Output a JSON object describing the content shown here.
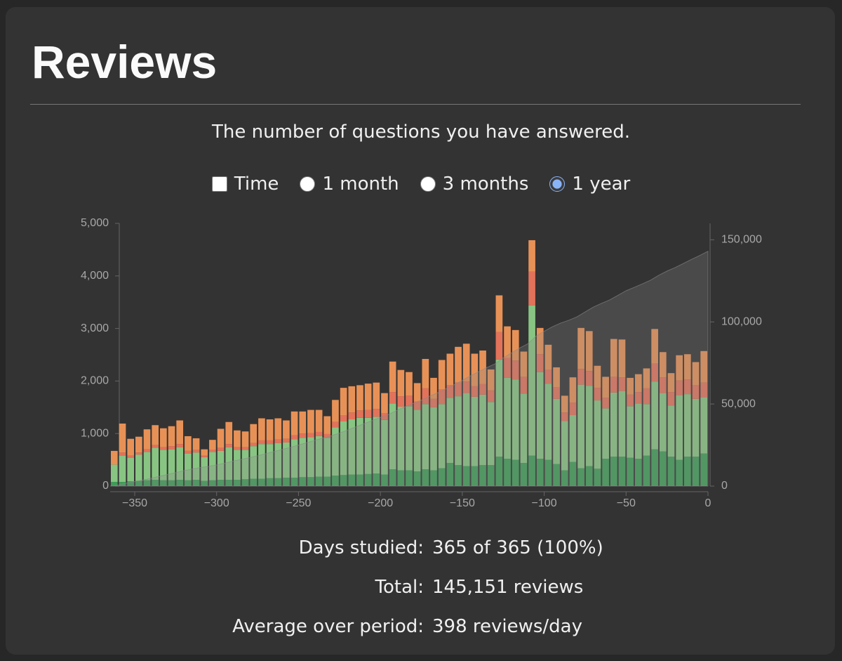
{
  "header": {
    "title": "Reviews",
    "subtitle": "The number of questions you have answered."
  },
  "controls": {
    "time": {
      "label": "Time",
      "checked": false
    },
    "ranges": [
      {
        "label": "1 month",
        "selected": false
      },
      {
        "label": "3 months",
        "selected": false
      },
      {
        "label": "1 year",
        "selected": true
      }
    ]
  },
  "chart_data": {
    "type": "histogram",
    "bins": [
      -365,
      -360,
      -355,
      -350,
      -345,
      -340,
      -335,
      -330,
      -325,
      -320,
      -315,
      -310,
      -305,
      -300,
      -295,
      -290,
      -285,
      -280,
      -275,
      -270,
      -265,
      -260,
      -255,
      -250,
      -245,
      -240,
      -235,
      -230,
      -225,
      -220,
      -215,
      -210,
      -205,
      -200,
      -195,
      -190,
      -185,
      -180,
      -175,
      -170,
      -165,
      -160,
      -155,
      -150,
      -145,
      -140,
      -135,
      -130,
      -125,
      -120,
      -115,
      -110,
      -105,
      -100,
      -95,
      -90,
      -85,
      -80,
      -75,
      -70,
      -65,
      -60,
      -55,
      -50,
      -45,
      -40,
      -35,
      -30,
      -25,
      -20,
      -15,
      -10,
      -5,
      0
    ],
    "series": [
      {
        "color": "#3fa55a",
        "values": [
          80,
          80,
          90,
          100,
          110,
          120,
          110,
          110,
          120,
          110,
          120,
          100,
          110,
          120,
          120,
          120,
          130,
          140,
          140,
          150,
          150,
          160,
          160,
          170,
          170,
          180,
          180,
          200,
          210,
          220,
          220,
          230,
          240,
          220,
          320,
          300,
          300,
          280,
          320,
          300,
          340,
          440,
          400,
          380,
          380,
          400,
          400,
          560,
          520,
          500,
          440,
          580,
          520,
          500,
          420,
          300,
          460,
          340,
          380,
          330,
          520,
          560,
          560,
          540,
          520,
          580,
          700,
          660,
          560,
          500,
          560,
          560,
          620
        ]
      },
      {
        "color": "#8fd18a",
        "values": [
          330,
          500,
          450,
          500,
          540,
          610,
          580,
          590,
          620,
          510,
          520,
          450,
          540,
          550,
          620,
          570,
          560,
          620,
          660,
          650,
          670,
          670,
          730,
          750,
          760,
          770,
          740,
          920,
          1020,
          1050,
          1080,
          1070,
          1080,
          1040,
          1250,
          1210,
          1220,
          1170,
          1240,
          1200,
          1220,
          1240,
          1310,
          1390,
          1320,
          1340,
          1200,
          1850,
          1540,
          1530,
          1320,
          2860,
          1650,
          1450,
          1240,
          940,
          890,
          1590,
          1530,
          1300,
          960,
          1220,
          1250,
          980,
          1050,
          980,
          1290,
          1110,
          970,
          1230,
          1190,
          1100,
          1070
        ]
      },
      {
        "color": "#f2775e",
        "values": [
          0,
          60,
          40,
          40,
          50,
          50,
          50,
          60,
          60,
          50,
          50,
          30,
          40,
          60,
          60,
          50,
          50,
          60,
          70,
          70,
          70,
          70,
          80,
          80,
          80,
          80,
          70,
          100,
          120,
          130,
          140,
          150,
          150,
          130,
          220,
          200,
          200,
          160,
          300,
          160,
          280,
          240,
          260,
          220,
          200,
          200,
          220,
          520,
          380,
          360,
          320,
          640,
          340,
          260,
          220,
          160,
          240,
          300,
          280,
          240,
          200,
          300,
          260,
          220,
          220,
          300,
          340,
          300,
          260,
          280,
          280,
          260,
          280
        ]
      },
      {
        "color": "#f7995a",
        "values": [
          260,
          550,
          320,
          300,
          380,
          380,
          360,
          380,
          450,
          280,
          220,
          120,
          190,
          360,
          420,
          320,
          300,
          360,
          420,
          400,
          400,
          350,
          450,
          420,
          440,
          420,
          340,
          420,
          520,
          500,
          480,
          500,
          500,
          380,
          580,
          500,
          450,
          350,
          560,
          400,
          560,
          600,
          680,
          720,
          620,
          640,
          400,
          700,
          600,
          580,
          480,
          600,
          500,
          480,
          380,
          320,
          480,
          780,
          760,
          420,
          400,
          720,
          720,
          320,
          340,
          380,
          660,
          480,
          360,
          480,
          480,
          440,
          600
        ]
      }
    ],
    "cumulative_color": "#8a8a8a",
    "xlim": [
      -365,
      0
    ],
    "xticks": [
      {
        "value": -350,
        "label": "−350"
      },
      {
        "value": -300,
        "label": "−300"
      },
      {
        "value": -250,
        "label": "−250"
      },
      {
        "value": -200,
        "label": "−200"
      },
      {
        "value": -150,
        "label": "−150"
      },
      {
        "value": -100,
        "label": "−100"
      },
      {
        "value": -50,
        "label": "−50"
      },
      0
    ],
    "ylim": [
      0,
      5000
    ],
    "yticks": [
      0,
      {
        "value": 1000,
        "label": "1,000"
      },
      {
        "value": 2000,
        "label": "2,000"
      },
      {
        "value": 3000,
        "label": "3,000"
      },
      {
        "value": 4000,
        "label": "4,000"
      },
      {
        "value": 5000,
        "label": "5,000"
      }
    ],
    "y2lim": [
      0,
      160000
    ],
    "y2ticks": [
      0,
      {
        "value": 50000,
        "label": "50,000"
      },
      {
        "value": 100000,
        "label": "100,000"
      },
      {
        "value": 150000,
        "label": "150,000"
      }
    ]
  },
  "stats": [
    {
      "label": "Days studied:",
      "value": "365 of 365 (100%)"
    },
    {
      "label": "Total:",
      "value": "145,151 reviews"
    },
    {
      "label": "Average over period:",
      "value": "398 reviews/day"
    }
  ]
}
